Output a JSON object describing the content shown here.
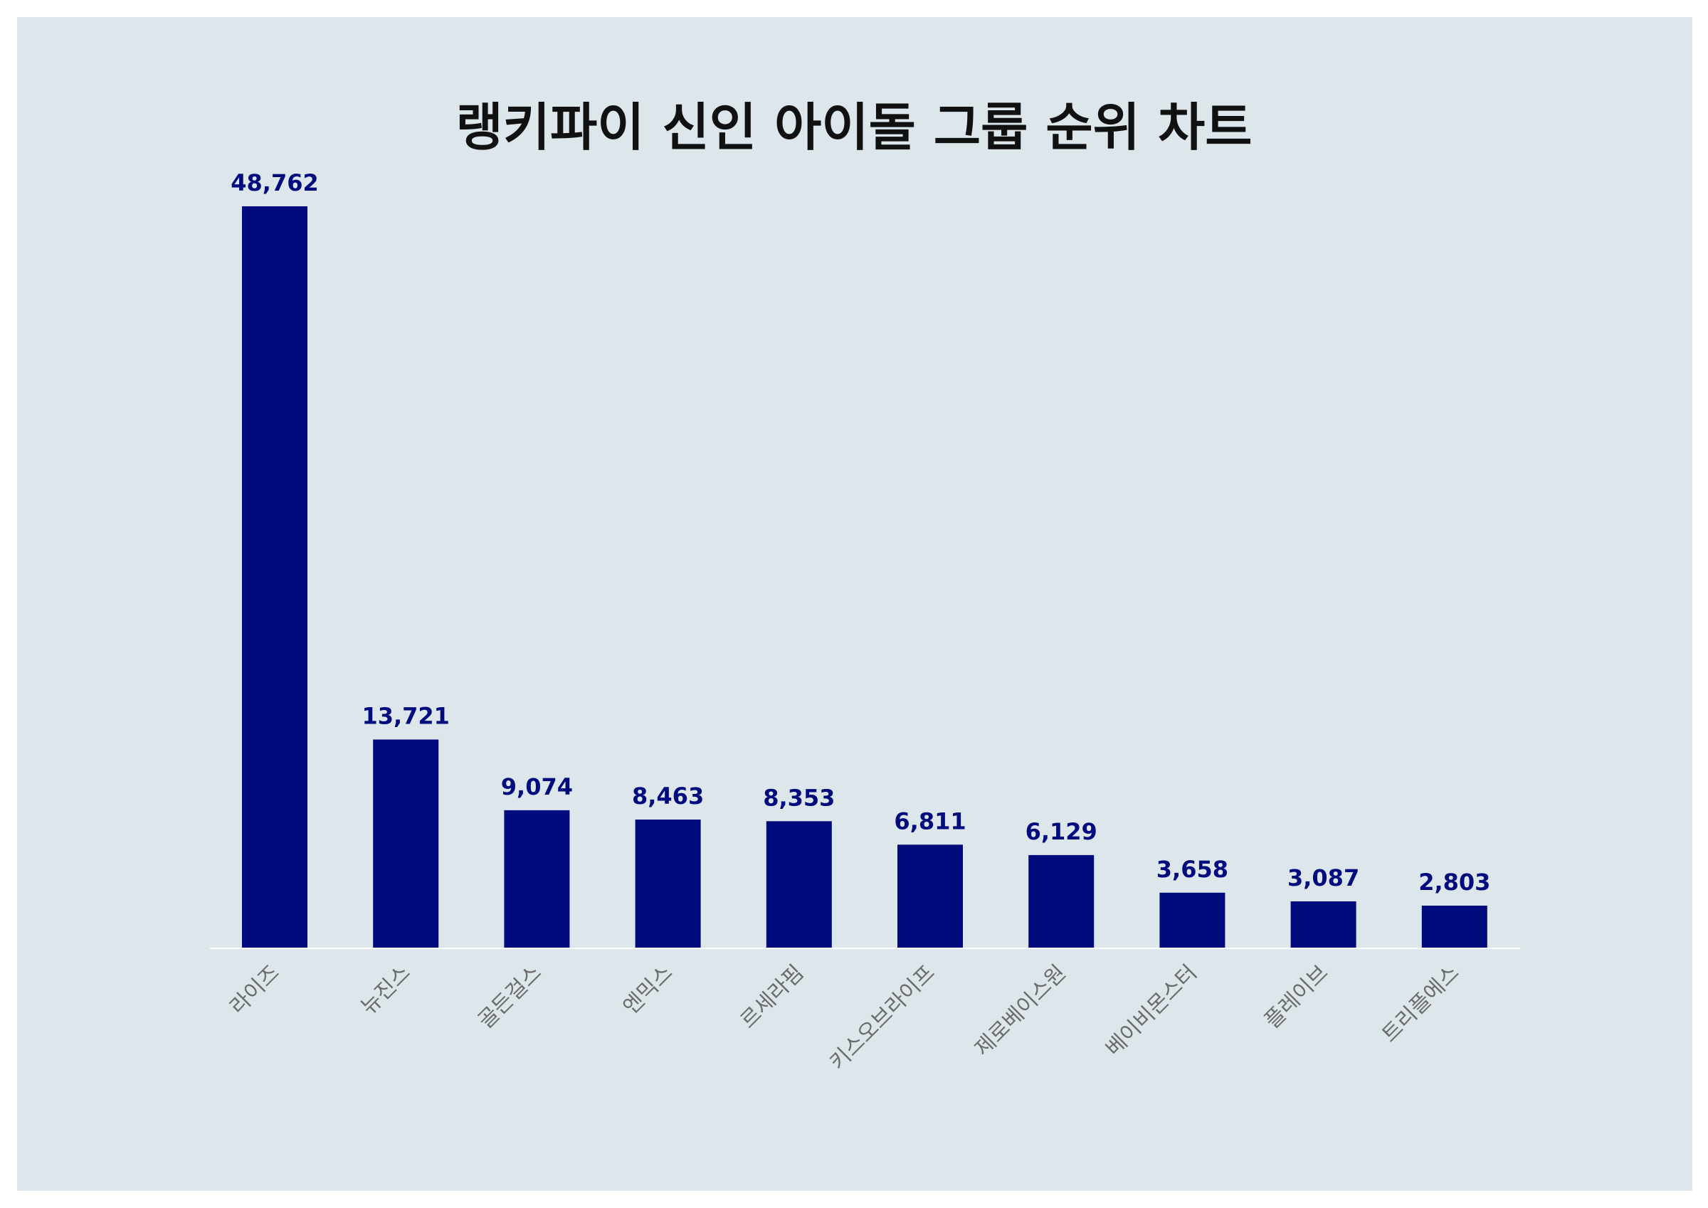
{
  "chart_data": {
    "type": "bar",
    "title": "랭키파이 신인 아이돌 그룹 순위 차트",
    "xlabel": "",
    "ylabel": "",
    "categories": [
      "라이즈",
      "뉴진스",
      "골든걸스",
      "엔믹스",
      "르세라핌",
      "키스오브라이프",
      "제로베이스원",
      "베이비몬스터",
      "플레이브",
      "트리플에스"
    ],
    "values": [
      48762,
      13721,
      9074,
      8463,
      8353,
      6811,
      6129,
      3658,
      3087,
      2803
    ],
    "value_labels": [
      "48,762",
      "13,721",
      "9,074",
      "8,463",
      "8,353",
      "6,811",
      "6,129",
      "3,658",
      "3,087",
      "2,803"
    ],
    "ylim": [
      0,
      48762
    ],
    "grid": false,
    "legend": "none"
  },
  "colors": {
    "background": "#dce6eb",
    "bar": "#000c7d",
    "value_label": "#000c7d",
    "tick_label": "#6b6b6b",
    "title": "#111111",
    "axis": "#ffffff"
  }
}
